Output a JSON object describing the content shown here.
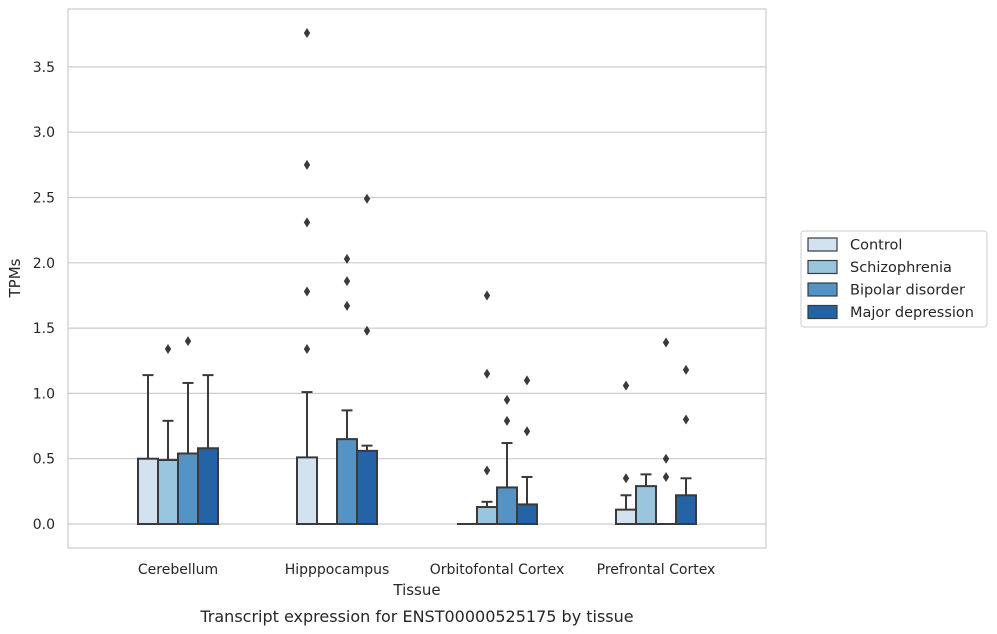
{
  "caption": "Transcript expression for ENST00000525175 by tissue",
  "chart_data": {
    "type": "box",
    "title": "",
    "xlabel": "Tissue",
    "ylabel": "TPMs",
    "ylim": [
      -0.18,
      3.9
    ],
    "yticks": [
      "0.0",
      "0.5",
      "1.0",
      "1.5",
      "2.0",
      "2.5",
      "3.0",
      "3.5"
    ],
    "ytick_values": [
      0,
      0.5,
      1.0,
      1.5,
      2.0,
      2.5,
      3.0,
      3.5
    ],
    "grid": "horizontal",
    "legend_position": "right",
    "categories": [
      "Cerebellum",
      "Hipppocampus",
      "Orbitofontal Cortex",
      "Prefrontal Cortex"
    ],
    "series": [
      {
        "name": "Control",
        "color": "#d2e2f0",
        "boxes": [
          {
            "whisker_low": 0,
            "q1": 0,
            "median": 0,
            "q3": 0.5,
            "whisker_high": 1.14,
            "outliers": []
          },
          {
            "whisker_low": 0,
            "q1": 0,
            "median": 0,
            "q3": 0.51,
            "whisker_high": 1.01,
            "outliers": [
              1.34,
              1.78,
              2.31,
              2.75,
              3.76
            ]
          },
          {
            "whisker_low": 0,
            "q1": 0,
            "median": 0,
            "q3": 0,
            "whisker_high": 0,
            "outliers": []
          },
          {
            "whisker_low": 0,
            "q1": 0,
            "median": 0,
            "q3": 0.11,
            "whisker_high": 0.22,
            "outliers": [
              0.35,
              1.06
            ]
          }
        ]
      },
      {
        "name": "Schizophrenia",
        "color": "#9ac5df",
        "boxes": [
          {
            "whisker_low": 0,
            "q1": 0,
            "median": 0,
            "q3": 0.49,
            "whisker_high": 0.79,
            "outliers": [
              1.34
            ]
          },
          {
            "whisker_low": 0,
            "q1": 0,
            "median": 0,
            "q3": 0,
            "whisker_high": 0,
            "outliers": []
          },
          {
            "whisker_low": 0,
            "q1": 0,
            "median": 0,
            "q3": 0.13,
            "whisker_high": 0.17,
            "outliers": [
              0.41,
              1.15,
              1.75
            ]
          },
          {
            "whisker_low": 0,
            "q1": 0,
            "median": 0,
            "q3": 0.29,
            "whisker_high": 0.38,
            "outliers": []
          }
        ]
      },
      {
        "name": "Bipolar disorder",
        "color": "#5393c5",
        "boxes": [
          {
            "whisker_low": 0,
            "q1": 0,
            "median": 0,
            "q3": 0.54,
            "whisker_high": 1.08,
            "outliers": [
              1.4
            ]
          },
          {
            "whisker_low": 0,
            "q1": 0,
            "median": 0,
            "q3": 0.65,
            "whisker_high": 0.87,
            "outliers": [
              1.67,
              1.86,
              2.03
            ]
          },
          {
            "whisker_low": 0,
            "q1": 0,
            "median": 0,
            "q3": 0.28,
            "whisker_high": 0.62,
            "outliers": [
              0.79,
              0.95
            ]
          },
          {
            "whisker_low": 0,
            "q1": 0,
            "median": 0,
            "q3": 0,
            "whisker_high": 0,
            "outliers": [
              0.36,
              0.5,
              1.39
            ]
          }
        ]
      },
      {
        "name": "Major depression",
        "color": "#2463a6",
        "boxes": [
          {
            "whisker_low": 0,
            "q1": 0,
            "median": 0,
            "q3": 0.58,
            "whisker_high": 1.14,
            "outliers": []
          },
          {
            "whisker_low": 0,
            "q1": 0,
            "median": 0,
            "q3": 0.56,
            "whisker_high": 0.6,
            "outliers": [
              1.48,
              2.49
            ]
          },
          {
            "whisker_low": 0,
            "q1": 0,
            "median": 0,
            "q3": 0.15,
            "whisker_high": 0.36,
            "outliers": [
              0.71,
              1.1
            ]
          },
          {
            "whisker_low": 0,
            "q1": 0,
            "median": 0,
            "q3": 0.22,
            "whisker_high": 0.35,
            "outliers": [
              0.8,
              1.18
            ]
          }
        ]
      }
    ]
  },
  "style": {
    "axes_edge": "#cccccc",
    "grid": "#cccccc",
    "box_edge": "#3a3a3a",
    "legend_edge": "#cccccc"
  }
}
